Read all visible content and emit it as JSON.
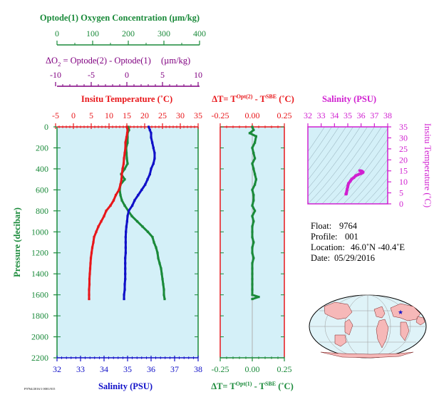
{
  "colors": {
    "oxygen": "#1a8a3a",
    "delta_o2": "#800080",
    "temperature": "#e8161a",
    "salinity": "#1010c8",
    "magenta": "#d020d0",
    "panel_bg": "#d4f0f8",
    "pressure": "#1a8a3a"
  },
  "oxygen_axis": {
    "title": "Optode(1) Oxygen Concentration (µm/kg)",
    "ticks": [
      "0",
      "100",
      "200",
      "300",
      "400"
    ]
  },
  "delta_o2_axis": {
    "title_pre": "ΔO",
    "title_sub": "2",
    "title_post": " = Optode(2) - Optode(1)",
    "title_units": "(µm/kg)",
    "ticks": [
      "-10",
      "-5",
      "0",
      "5",
      "10"
    ]
  },
  "temperature_axis": {
    "title": "Insitu Temperature (˚C)",
    "ticks": [
      "-5",
      "0",
      "5",
      "10",
      "15",
      "20",
      "25",
      "30",
      "35"
    ]
  },
  "salinity_axis": {
    "title": "Salinity (PSU)",
    "ticks": [
      "32",
      "33",
      "34",
      "35",
      "36",
      "37",
      "38"
    ]
  },
  "pressure_axis": {
    "title": "Pressure (decibar)",
    "ticks": [
      "0",
      "200",
      "400",
      "600",
      "800",
      "1000",
      "1200",
      "1400",
      "1600",
      "1800",
      "2000",
      "2200"
    ]
  },
  "dt_panel": {
    "top_title_pre": "ΔT= T",
    "top_title_sup1": "Opt(2)",
    "top_title_mid": " - T",
    "top_title_sup2": "SBE",
    "top_title_post": " (˚C)",
    "bottom_title_pre": "ΔT= T",
    "bottom_title_sup1": "Opt(1)",
    "bottom_title_mid": " - T",
    "bottom_title_sup2": "SBE",
    "bottom_title_post": " (˚C)",
    "ticks": [
      "-0.25",
      "0.00",
      "0.25"
    ]
  },
  "ts_panel": {
    "title": "Salinity (PSU)",
    "x_ticks": [
      "32",
      "33",
      "34",
      "35",
      "36",
      "37",
      "38"
    ],
    "y_ticks": [
      "0",
      "5",
      "10",
      "15",
      "20",
      "25",
      "30",
      "35"
    ],
    "y_title": "Insitu Temperature (˚C)"
  },
  "info": {
    "float_label": "Float:",
    "float_value": "9764",
    "profile_label": "Profile:",
    "profile_value": "001",
    "location_label": "Location:",
    "location_value": "46.0˚N  -40.4˚E",
    "date_label": "Date:",
    "date_value": "05/29/2016"
  },
  "footer_code": "F9764/2016/1 0001/015",
  "chart_data": {
    "type": "line",
    "pressure_range": [
      0,
      2200
    ],
    "series": [
      {
        "name": "Insitu Temperature",
        "unit": "˚C",
        "x_range": [
          -5,
          35
        ],
        "points": [
          [
            15.0,
            0
          ],
          [
            15.2,
            30
          ],
          [
            15.1,
            60
          ],
          [
            14.9,
            100
          ],
          [
            14.6,
            150
          ],
          [
            14.6,
            200
          ],
          [
            14.4,
            250
          ],
          [
            14.2,
            300
          ],
          [
            14.1,
            350
          ],
          [
            13.8,
            400
          ],
          [
            13.6,
            450
          ],
          [
            13.5,
            500
          ],
          [
            13.2,
            550
          ],
          [
            12.8,
            600
          ],
          [
            11.9,
            650
          ],
          [
            11.3,
            700
          ],
          [
            10.4,
            750
          ],
          [
            9.2,
            800
          ],
          [
            8.6,
            850
          ],
          [
            7.8,
            900
          ],
          [
            7.0,
            950
          ],
          [
            6.4,
            1000
          ],
          [
            5.8,
            1050
          ],
          [
            5.6,
            1100
          ],
          [
            5.3,
            1150
          ],
          [
            5.1,
            1200
          ],
          [
            4.9,
            1250
          ],
          [
            4.8,
            1300
          ],
          [
            4.7,
            1350
          ],
          [
            4.6,
            1400
          ],
          [
            4.5,
            1450
          ],
          [
            4.5,
            1500
          ],
          [
            4.4,
            1550
          ],
          [
            4.4,
            1600
          ],
          [
            4.4,
            1640
          ]
        ]
      },
      {
        "name": "Salinity",
        "unit": "PSU",
        "x_range": [
          32,
          38
        ],
        "points": [
          [
            35.9,
            0
          ],
          [
            35.95,
            30
          ],
          [
            36.0,
            60
          ],
          [
            36.0,
            100
          ],
          [
            36.05,
            150
          ],
          [
            36.1,
            200
          ],
          [
            36.15,
            250
          ],
          [
            36.15,
            300
          ],
          [
            36.1,
            350
          ],
          [
            36.0,
            400
          ],
          [
            35.95,
            450
          ],
          [
            35.85,
            500
          ],
          [
            35.75,
            550
          ],
          [
            35.6,
            600
          ],
          [
            35.45,
            650
          ],
          [
            35.3,
            700
          ],
          [
            35.2,
            750
          ],
          [
            35.05,
            800
          ],
          [
            35.0,
            850
          ],
          [
            34.98,
            900
          ],
          [
            34.95,
            950
          ],
          [
            34.93,
            1000
          ],
          [
            34.92,
            1050
          ],
          [
            34.92,
            1100
          ],
          [
            34.92,
            1150
          ],
          [
            34.92,
            1200
          ],
          [
            34.9,
            1250
          ],
          [
            34.9,
            1300
          ],
          [
            34.9,
            1350
          ],
          [
            34.9,
            1400
          ],
          [
            34.9,
            1450
          ],
          [
            34.88,
            1500
          ],
          [
            34.88,
            1550
          ],
          [
            34.85,
            1600
          ],
          [
            34.85,
            1640
          ]
        ]
      },
      {
        "name": "Optode(1) Oxygen Concentration",
        "unit": "µm/kg",
        "x_range": [
          0,
          400
        ],
        "points": [
          [
            200,
            0
          ],
          [
            202,
            30
          ],
          [
            198,
            60
          ],
          [
            198,
            100
          ],
          [
            198,
            150
          ],
          [
            194,
            200
          ],
          [
            195,
            250
          ],
          [
            196,
            300
          ],
          [
            198,
            350
          ],
          [
            190,
            400
          ],
          [
            180,
            450
          ],
          [
            190,
            500
          ],
          [
            178,
            550
          ],
          [
            176,
            600
          ],
          [
            178,
            650
          ],
          [
            182,
            700
          ],
          [
            190,
            750
          ],
          [
            200,
            800
          ],
          [
            210,
            850
          ],
          [
            225,
            900
          ],
          [
            240,
            950
          ],
          [
            255,
            1000
          ],
          [
            268,
            1050
          ],
          [
            272,
            1100
          ],
          [
            278,
            1150
          ],
          [
            282,
            1200
          ],
          [
            284,
            1250
          ],
          [
            288,
            1300
          ],
          [
            292,
            1350
          ],
          [
            294,
            1400
          ],
          [
            296,
            1450
          ],
          [
            298,
            1500
          ],
          [
            300,
            1550
          ],
          [
            300,
            1600
          ],
          [
            302,
            1640
          ]
        ]
      },
      {
        "name": "ΔT Opt(1) - SBE",
        "unit": "˚C",
        "x_range": [
          -0.25,
          0.25
        ],
        "points": [
          [
            0.0,
            0
          ],
          [
            0.01,
            30
          ],
          [
            -0.02,
            60
          ],
          [
            0.03,
            90
          ],
          [
            0.02,
            150
          ],
          [
            0.0,
            200
          ],
          [
            0.01,
            250
          ],
          [
            0.02,
            300
          ],
          [
            0.0,
            350
          ],
          [
            0.01,
            400
          ],
          [
            0.02,
            450
          ],
          [
            0.03,
            500
          ],
          [
            0.02,
            550
          ],
          [
            0.0,
            600
          ],
          [
            0.01,
            650
          ],
          [
            0.01,
            700
          ],
          [
            0.0,
            750
          ],
          [
            0.02,
            800
          ],
          [
            0.0,
            850
          ],
          [
            0.01,
            900
          ],
          [
            0.0,
            950
          ],
          [
            0.0,
            1000
          ],
          [
            0.0,
            1050
          ],
          [
            0.01,
            1100
          ],
          [
            0.0,
            1150
          ],
          [
            0.0,
            1200
          ],
          [
            0.01,
            1250
          ],
          [
            0.0,
            1300
          ],
          [
            0.0,
            1350
          ],
          [
            0.0,
            1400
          ],
          [
            0.0,
            1450
          ],
          [
            0.0,
            1500
          ],
          [
            0.0,
            1550
          ],
          [
            0.0,
            1600
          ],
          [
            0.05,
            1620
          ],
          [
            0.0,
            1640
          ]
        ]
      },
      {
        "name": "T-S Profile",
        "unit": "PSU / ˚C",
        "x_range": [
          32,
          38
        ],
        "y_range": [
          0,
          35
        ],
        "points": [
          [
            34.85,
            4.4
          ],
          [
            34.9,
            4.6
          ],
          [
            34.9,
            5.0
          ],
          [
            34.92,
            5.6
          ],
          [
            34.95,
            6.6
          ],
          [
            35.0,
            7.8
          ],
          [
            35.05,
            9.2
          ],
          [
            35.2,
            10.4
          ],
          [
            35.3,
            11.3
          ],
          [
            35.45,
            11.9
          ],
          [
            35.6,
            12.8
          ],
          [
            35.75,
            13.2
          ],
          [
            35.85,
            13.5
          ],
          [
            36.0,
            13.8
          ],
          [
            36.1,
            14.1
          ],
          [
            36.15,
            14.4
          ],
          [
            36.1,
            14.6
          ],
          [
            36.05,
            14.9
          ],
          [
            36.0,
            15.0
          ],
          [
            35.9,
            15.1
          ]
        ]
      }
    ]
  }
}
